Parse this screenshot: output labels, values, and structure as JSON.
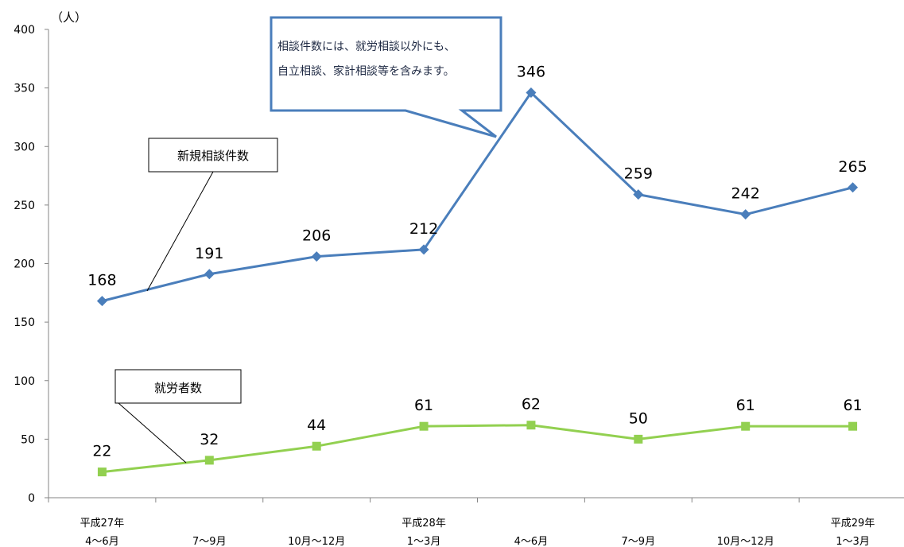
{
  "chart_data": {
    "type": "line",
    "y_unit": "（人）",
    "ylim": [
      0,
      400
    ],
    "y_ticks": [
      0,
      50,
      100,
      150,
      200,
      250,
      300,
      350,
      400
    ],
    "grid": false,
    "categories": [
      {
        "year": "平成27年",
        "period": "4～6月"
      },
      {
        "year": "",
        "period": "7～9月"
      },
      {
        "year": "",
        "period": "10月～12月"
      },
      {
        "year": "平成28年",
        "period": "1～3月"
      },
      {
        "year": "",
        "period": "4～6月"
      },
      {
        "year": "",
        "period": "7～9月"
      },
      {
        "year": "",
        "period": "10月～12月"
      },
      {
        "year": "平成29年",
        "period": "1～3月"
      }
    ],
    "series": [
      {
        "name": "新規相談件数",
        "values": [
          168,
          191,
          206,
          212,
          346,
          259,
          242,
          265
        ],
        "color": "#4a7ebb",
        "marker": "diamond"
      },
      {
        "name": "就労者数",
        "values": [
          22,
          32,
          44,
          61,
          62,
          50,
          61,
          61
        ],
        "color": "#92d050",
        "marker": "square"
      }
    ],
    "annotation": {
      "lines": [
        "相談件数には、就労相談以外にも、",
        "自立相談、家計相談等を含みます。"
      ],
      "border_color": "#4a7ebb"
    }
  }
}
